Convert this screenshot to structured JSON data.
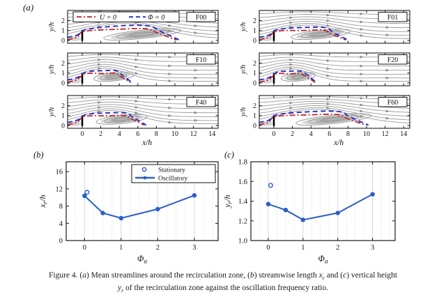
{
  "colors": {
    "contour_red": "#c32422",
    "contour_blue": "#2a33cb",
    "series_blue": "#2a5ec6",
    "streamline_gray": "#9a9a9a",
    "shade_gray": "#b3b3b3",
    "grid_major": "#dedede",
    "grid_minor": "#c8c8c8",
    "frame": "#1a1a1a"
  },
  "panel_a": {
    "label": "(a)",
    "legend": {
      "u_label": "U = 0",
      "phi_label": "Φ = 0"
    },
    "ylabel": "y/h",
    "xlabel": "x/h",
    "yticks": [
      "0",
      "1",
      "2"
    ],
    "xticks": [
      "0",
      "2",
      "4",
      "6",
      "8",
      "10",
      "12",
      "14"
    ],
    "cases": [
      {
        "tag": "F00",
        "col": 0,
        "row": 0,
        "x_reattach": 10.5,
        "peak_height": 1.5,
        "bubble_center": 4.6,
        "has_legend": true
      },
      {
        "tag": "F01",
        "col": 1,
        "row": 0,
        "x_reattach": 8.0,
        "peak_height": 1.32,
        "bubble_center": 3.6,
        "has_legend": false
      },
      {
        "tag": "F10",
        "col": 0,
        "row": 1,
        "x_reattach": 5.4,
        "peak_height": 1.25,
        "bubble_center": 2.4,
        "has_legend": false
      },
      {
        "tag": "F20",
        "col": 1,
        "row": 1,
        "x_reattach": 4.6,
        "peak_height": 1.2,
        "bubble_center": 1.8,
        "has_legend": false
      },
      {
        "tag": "F40",
        "col": 0,
        "row": 2,
        "x_reattach": 6.9,
        "peak_height": 1.28,
        "bubble_center": 3.0,
        "has_legend": false
      },
      {
        "tag": "F60",
        "col": 1,
        "row": 2,
        "x_reattach": 10.2,
        "peak_height": 1.42,
        "bubble_center": 4.6,
        "has_legend": false
      }
    ]
  },
  "chart_data": [
    {
      "id": "b",
      "type": "line",
      "panel_label": "(b)",
      "xlabel": {
        "var": "Φ",
        "sub": "a"
      },
      "ylabel": {
        "var": "x",
        "sub": "r",
        "rest": "/h"
      },
      "xlim": [
        -0.5,
        3.65
      ],
      "ylim": [
        0,
        18.3
      ],
      "xticks": [
        0,
        1,
        2,
        3
      ],
      "xtick_labels": [
        "0",
        "1",
        "2",
        "3"
      ],
      "yticks": [
        0,
        4,
        8,
        12,
        16
      ],
      "ytick_labels": [
        "0",
        "4",
        "8",
        "12",
        "16"
      ],
      "grid": "vertical major solid + minor dotted every 0.25",
      "legend": true,
      "legend_position": "top-right",
      "series": [
        {
          "name": "Stationary",
          "marker": "open-circle",
          "line": false,
          "x": [
            0.07
          ],
          "y": [
            11.2
          ]
        },
        {
          "name": "Oscillatory",
          "marker": "filled-circle",
          "line": true,
          "x": [
            0,
            0.5,
            1,
            2,
            3
          ],
          "y": [
            10.4,
            6.4,
            5.2,
            7.3,
            10.5
          ]
        }
      ]
    },
    {
      "id": "c",
      "type": "line",
      "panel_label": "(c)",
      "xlabel": {
        "var": "Φ",
        "sub": "a"
      },
      "ylabel": {
        "var": "y",
        "sub": "r",
        "rest": "/h"
      },
      "xlim": [
        -0.5,
        3.65
      ],
      "ylim": [
        1.0,
        1.8
      ],
      "xticks": [
        0,
        1,
        2,
        3
      ],
      "xtick_labels": [
        "0",
        "1",
        "2",
        "3"
      ],
      "yticks": [
        1.0,
        1.2,
        1.4,
        1.6,
        1.8
      ],
      "ytick_labels": [
        "1.0",
        "1.2",
        "1.4",
        "1.6",
        "1.8"
      ],
      "grid": "vertical major solid + minor dotted every 0.25",
      "legend": false,
      "series": [
        {
          "name": "Stationary",
          "marker": "open-circle",
          "line": false,
          "x": [
            0.07
          ],
          "y": [
            1.56
          ]
        },
        {
          "name": "Oscillatory",
          "marker": "filled-circle",
          "line": true,
          "x": [
            0,
            0.5,
            1,
            2,
            3
          ],
          "y": [
            1.37,
            1.31,
            1.21,
            1.28,
            1.47
          ]
        }
      ]
    }
  ],
  "caption": {
    "line1": [
      {
        "t": "Figure 4. ("
      },
      {
        "t": "a",
        "i": 1
      },
      {
        "t": ") Mean streamlines around the recirculation zone, ("
      },
      {
        "t": "b",
        "i": 1
      },
      {
        "t": ") streamwise length "
      },
      {
        "t": "x",
        "i": 1
      },
      {
        "t": "r",
        "i": 1,
        "sub": 1
      },
      {
        "t": " and ("
      },
      {
        "t": "c",
        "i": 1
      },
      {
        "t": ") vertical height"
      }
    ],
    "line2": [
      {
        "t": "y",
        "i": 1
      },
      {
        "t": "r",
        "i": 1,
        "sub": 1
      },
      {
        "t": " of the recirculation zone against the oscillation frequency ratio."
      }
    ]
  }
}
